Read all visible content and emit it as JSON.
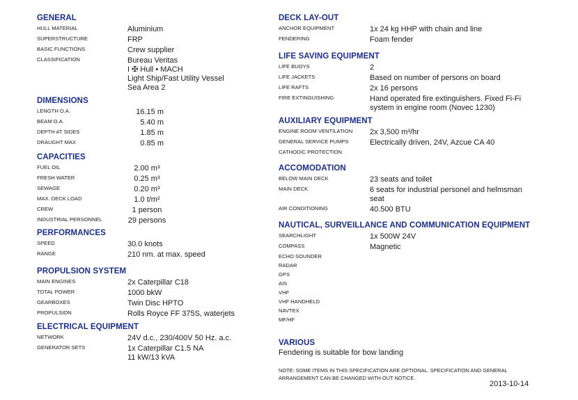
{
  "left": [
    {
      "title": "GENERAL",
      "rows": [
        {
          "label": "Hull material",
          "value": [
            "Aluminium"
          ]
        },
        {
          "label": "Superstructure",
          "value": [
            "FRP"
          ]
        },
        {
          "label": "Basic functions",
          "value": [
            "Crew supplier"
          ]
        },
        {
          "label": "Classification",
          "value": [
            "Bureau Veritas",
            " I ✠ Hull  • MACH",
            "Light Ship/Fast Utility Vessel",
            "Sea Area 2"
          ]
        }
      ]
    },
    {
      "title": "DIMENSIONS",
      "rows": [
        {
          "label": "Length O.A.",
          "value": [
            "16.15 m"
          ]
        },
        {
          "label": "Beam O.A.",
          "value": [
            "5.40 m"
          ]
        },
        {
          "label": "Depth at sides",
          "value": [
            "1.85 m"
          ]
        },
        {
          "label": "Draught max",
          "value": [
            "0.85 m"
          ]
        }
      ]
    },
    {
      "title": "CAPACITIES",
      "rows": [
        {
          "label": "Fuel oil",
          "value": [
            "2.00 m³"
          ]
        },
        {
          "label": "Fresh water",
          "value": [
            "0.25 m³"
          ]
        },
        {
          "label": "Sewage",
          "value": [
            "0.20 m³"
          ]
        },
        {
          "label": "Max. deck load",
          "value": [
            "1.0 t/m²"
          ]
        },
        {
          "label": "Crew",
          "value": [
            "1 person"
          ]
        },
        {
          "label": "Industrial personnel",
          "value": [
            "29 persons"
          ]
        }
      ]
    },
    {
      "title": "PERFORMANCES",
      "rows": [
        {
          "label": "Speed",
          "value": [
            "30.0 knots"
          ]
        },
        {
          "label": "Range",
          "value": [
            "210 nm. at max. speed"
          ]
        }
      ]
    },
    {
      "title": "PROPULSION SYSTEM",
      "rows": [
        {
          "label": "Main engines",
          "value": [
            "2x Caterpillar C18"
          ]
        },
        {
          "label": "Total power",
          "value": [
            "1000 bkW"
          ]
        },
        {
          "label": "Gearboxes",
          "value": [
            "Twin Disc HPTO"
          ]
        },
        {
          "label": "Propulsion",
          "value": [
            "Rolls Royce FF 375S, waterjets"
          ]
        }
      ]
    },
    {
      "title": "ELECTRICAL EQUIPMENT",
      "rows": [
        {
          "label": "Network",
          "value": [
            "24V d.c., 230/400V 50 Hz. a.c."
          ]
        },
        {
          "label": "Generator sets",
          "value": [
            "1x Caterpillar C1.5 NA",
            "11 kW/13 kVA"
          ]
        }
      ]
    }
  ],
  "right": [
    {
      "title": "DECK LAY-OUT",
      "rows": [
        {
          "label": "Anchor equipment",
          "value": [
            "1x 24 kg HHP with chain and line"
          ]
        },
        {
          "label": "Fendering",
          "value": [
            "Foam fender"
          ]
        }
      ]
    },
    {
      "title": "LIFE SAVING EQUIPMENT",
      "rows": [
        {
          "label": "Life buoys",
          "value": [
            "2"
          ]
        },
        {
          "label": "Life jackets",
          "value": [
            "Based on number of persons on board"
          ]
        },
        {
          "label": "Life rafts",
          "value": [
            "2x 16 persons"
          ]
        },
        {
          "label": "Fire extinguishing",
          "value": [
            "Hand operated fire extinguishers. Fixed Fi-Fi",
            "system in engine room (Novec 1230)"
          ]
        }
      ]
    },
    {
      "title": "AUXILIARY EQUIPMENT",
      "rows": [
        {
          "label": "Engine room ventilation",
          "value": [
            "2x 3,500 m³/hr"
          ]
        },
        {
          "label": "General service pumps",
          "value": [
            "Electrically driven,  24V, Azcue CA 40"
          ]
        },
        {
          "label": "Cathodic protection",
          "value": []
        }
      ]
    },
    {
      "title": "ACCOMODATION",
      "rows": [
        {
          "label": "Below main deck",
          "value": [
            "23 seats and toilet"
          ]
        },
        {
          "label": "Main deck",
          "value": [
            "6 seats for industrial personel and helmsman",
            "seat"
          ]
        },
        {
          "label": "Air conditioning",
          "value": [
            "40.500 BTU"
          ]
        }
      ]
    },
    {
      "title": "NAUTICAL, SURVEILLANCE AND COMMUNICATION EQUIPMENT",
      "rows": [
        {
          "label": "Searchlight",
          "value": [
            "1x 500W 24V"
          ]
        },
        {
          "label": "Compass",
          "value": [
            "Magnetic"
          ]
        },
        {
          "label": "Echo sounder",
          "value": []
        },
        {
          "label": "Radar",
          "value": []
        },
        {
          "label": "GPS",
          "value": []
        },
        {
          "label": "AIS",
          "value": []
        },
        {
          "label": "VHF",
          "value": []
        },
        {
          "label": "VHF handheld",
          "value": []
        },
        {
          "label": "Navtex",
          "value": []
        },
        {
          "label": "MF/HF",
          "value": []
        }
      ]
    }
  ],
  "various": {
    "title": "VARIOUS",
    "text": "Fendering is suitable for bow landing"
  },
  "note": [
    "NOTE: SOME ITEMS IN THIS SPECIFICATION ARE OPTIONAL. SPECIFICATION AND GENERAL",
    "ARRANGEMENT CAN BE CHANGED WITH OUT NOTICE."
  ],
  "date": "2013-10-14",
  "colors": {
    "heading": "#1a2e8c",
    "text": "#1a1a1a"
  }
}
